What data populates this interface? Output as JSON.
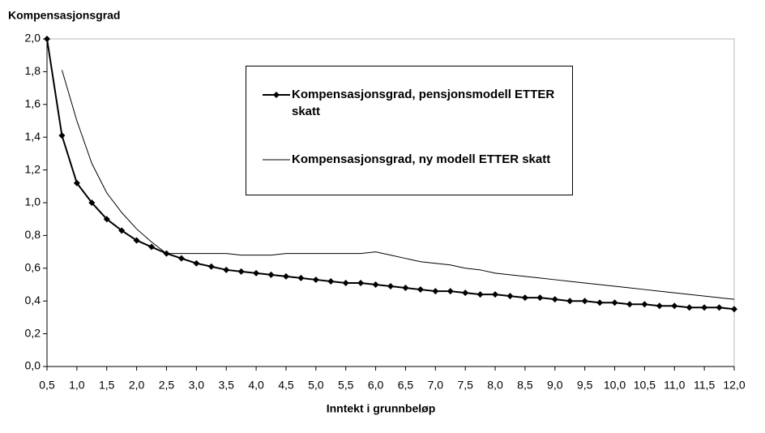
{
  "chart_data": {
    "type": "line",
    "y_label": "Kompensasjonsgrad",
    "x_label": "Inntekt i grunnbeløp",
    "x": [
      0.5,
      0.75,
      1.0,
      1.25,
      1.5,
      1.75,
      2.0,
      2.25,
      2.5,
      2.75,
      3.0,
      3.25,
      3.5,
      3.75,
      4.0,
      4.25,
      4.5,
      4.75,
      5.0,
      5.25,
      5.5,
      5.75,
      6.0,
      6.25,
      6.5,
      6.75,
      7.0,
      7.25,
      7.5,
      7.75,
      8.0,
      8.25,
      8.5,
      8.75,
      9.0,
      9.25,
      9.5,
      9.75,
      10.0,
      10.25,
      10.5,
      10.75,
      11.0,
      11.25,
      11.5,
      11.75,
      12.0
    ],
    "series": [
      {
        "name": "Kompensasjonsgrad, pensjonsmodell ETTER skatt",
        "color": "#000000",
        "marker": "diamond",
        "values": [
          2.0,
          1.41,
          1.12,
          1.0,
          0.9,
          0.83,
          0.77,
          0.73,
          0.69,
          0.66,
          0.63,
          0.61,
          0.59,
          0.58,
          0.57,
          0.56,
          0.55,
          0.54,
          0.53,
          0.52,
          0.51,
          0.51,
          0.5,
          0.49,
          0.48,
          0.47,
          0.46,
          0.46,
          0.45,
          0.44,
          0.44,
          0.43,
          0.42,
          0.42,
          0.41,
          0.4,
          0.4,
          0.39,
          0.39,
          0.38,
          0.38,
          0.37,
          0.37,
          0.36,
          0.36,
          0.36,
          0.35
        ]
      },
      {
        "name": "Kompensasjonsgrad, ny modell ETTER skatt",
        "color": "#000000",
        "values": [
          null,
          1.81,
          1.5,
          1.24,
          1.06,
          0.94,
          0.84,
          0.76,
          0.69,
          0.69,
          0.69,
          0.69,
          0.69,
          0.68,
          0.68,
          0.68,
          0.69,
          0.69,
          0.69,
          0.69,
          0.69,
          0.69,
          0.7,
          0.68,
          0.66,
          0.64,
          0.63,
          0.62,
          0.6,
          0.59,
          0.57,
          0.56,
          0.55,
          0.54,
          0.53,
          0.52,
          0.51,
          0.5,
          0.49,
          0.48,
          0.47,
          0.46,
          0.45,
          0.44,
          0.43,
          0.42,
          0.41
        ]
      }
    ],
    "xlim": [
      0.5,
      12.0
    ],
    "xticks": [
      {
        "value": 0.5,
        "label": "0,5"
      },
      {
        "value": 1.0,
        "label": "1,0"
      },
      {
        "value": 1.5,
        "label": "1,5"
      },
      {
        "value": 2.0,
        "label": "2,0"
      },
      {
        "value": 2.5,
        "label": "2,5"
      },
      {
        "value": 3.0,
        "label": "3,0"
      },
      {
        "value": 3.5,
        "label": "3,5"
      },
      {
        "value": 4.0,
        "label": "4,0"
      },
      {
        "value": 4.5,
        "label": "4,5"
      },
      {
        "value": 5.0,
        "label": "5,0"
      },
      {
        "value": 5.5,
        "label": "5,5"
      },
      {
        "value": 6.0,
        "label": "6,0"
      },
      {
        "value": 6.5,
        "label": "6,5"
      },
      {
        "value": 7.0,
        "label": "7,0"
      },
      {
        "value": 7.5,
        "label": "7,5"
      },
      {
        "value": 8.0,
        "label": "8,0"
      },
      {
        "value": 8.5,
        "label": "8,5"
      },
      {
        "value": 9.0,
        "label": "9,0"
      },
      {
        "value": 9.5,
        "label": "9,5"
      },
      {
        "value": 10.0,
        "label": "10,0"
      },
      {
        "value": 10.5,
        "label": "10,5"
      },
      {
        "value": 11.0,
        "label": "11,0"
      },
      {
        "value": 11.5,
        "label": "11,5"
      },
      {
        "value": 12.0,
        "label": "12,0"
      }
    ],
    "ylim": [
      0,
      2.0
    ],
    "yticks": [
      {
        "value": 0,
        "label": "0,0"
      },
      {
        "value": 0.2,
        "label": "0,2"
      },
      {
        "value": 0.4,
        "label": "0,4"
      },
      {
        "value": 0.6,
        "label": "0,6"
      },
      {
        "value": 0.8,
        "label": "0,8"
      },
      {
        "value": 1.0,
        "label": "1,0"
      },
      {
        "value": 1.2,
        "label": "1,2"
      },
      {
        "value": 1.4,
        "label": "1,4"
      },
      {
        "value": 1.6,
        "label": "1,6"
      },
      {
        "value": 1.8,
        "label": "1,8"
      },
      {
        "value": 2.0,
        "label": "2,0"
      }
    ]
  }
}
